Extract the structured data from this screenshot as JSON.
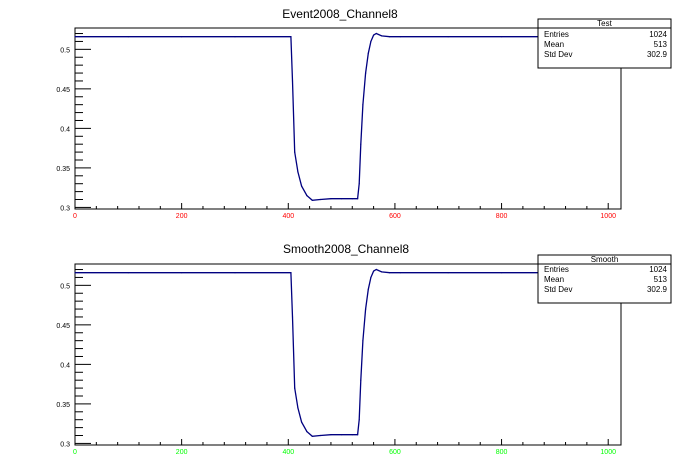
{
  "chart_data": [
    {
      "type": "line",
      "title": "Event2008_Channel8",
      "xlim": [
        0,
        1024
      ],
      "ylim": [
        0.298,
        0.527
      ],
      "x_ticks": [
        0,
        200,
        400,
        600,
        800,
        1000
      ],
      "y_ticks": [
        0.3,
        0.35,
        0.4,
        0.45,
        0.5
      ],
      "y_tick_labels": [
        "0.3",
        "0.35",
        "0.4",
        "0.45",
        "0.5"
      ],
      "x_tick_color": "#ff0000",
      "line_color": "#000080",
      "stats": {
        "name": "Test",
        "rows": [
          {
            "label": "Entries",
            "value": "1024"
          },
          {
            "label": "Mean",
            "value": "513"
          },
          {
            "label": "Std Dev",
            "value": "302.9"
          }
        ]
      },
      "series": [
        {
          "x": [
            0,
            100,
            200,
            300,
            405,
            408,
            412,
            418,
            425,
            435,
            445,
            460,
            480,
            500,
            520,
            530,
            533,
            536,
            540,
            545,
            550,
            555,
            560,
            565,
            575,
            590,
            610,
            700,
            800,
            900,
            1000,
            1024
          ],
          "values": [
            0.516,
            0.516,
            0.516,
            0.516,
            0.516,
            0.46,
            0.37,
            0.345,
            0.327,
            0.315,
            0.309,
            0.31,
            0.311,
            0.311,
            0.311,
            0.311,
            0.33,
            0.38,
            0.43,
            0.47,
            0.495,
            0.51,
            0.518,
            0.52,
            0.517,
            0.516,
            0.516,
            0.516,
            0.516,
            0.516,
            0.516,
            0.516
          ]
        }
      ]
    },
    {
      "type": "line",
      "title": "Smooth2008_Channel8",
      "xlim": [
        0,
        1024
      ],
      "ylim": [
        0.298,
        0.527
      ],
      "x_ticks": [
        0,
        200,
        400,
        600,
        800,
        1000
      ],
      "y_ticks": [
        0.3,
        0.35,
        0.4,
        0.45,
        0.5
      ],
      "y_tick_labels": [
        "0.3",
        "0.35",
        "0.4",
        "0.45",
        "0.5"
      ],
      "x_tick_color": "#00ff00",
      "line_color": "#000080",
      "stats": {
        "name": "Smooth",
        "rows": [
          {
            "label": "Entries",
            "value": "1024"
          },
          {
            "label": "Mean",
            "value": "513"
          },
          {
            "label": "Std Dev",
            "value": "302.9"
          }
        ]
      },
      "series": [
        {
          "x": [
            0,
            100,
            200,
            300,
            405,
            408,
            412,
            418,
            425,
            435,
            445,
            460,
            480,
            500,
            520,
            530,
            533,
            536,
            540,
            545,
            550,
            555,
            560,
            565,
            575,
            590,
            610,
            700,
            800,
            900,
            1000,
            1024
          ],
          "values": [
            0.516,
            0.516,
            0.516,
            0.516,
            0.516,
            0.46,
            0.37,
            0.345,
            0.327,
            0.315,
            0.309,
            0.31,
            0.311,
            0.311,
            0.311,
            0.311,
            0.33,
            0.38,
            0.43,
            0.47,
            0.495,
            0.51,
            0.518,
            0.52,
            0.517,
            0.516,
            0.516,
            0.516,
            0.516,
            0.516,
            0.516,
            0.516
          ]
        }
      ]
    }
  ]
}
